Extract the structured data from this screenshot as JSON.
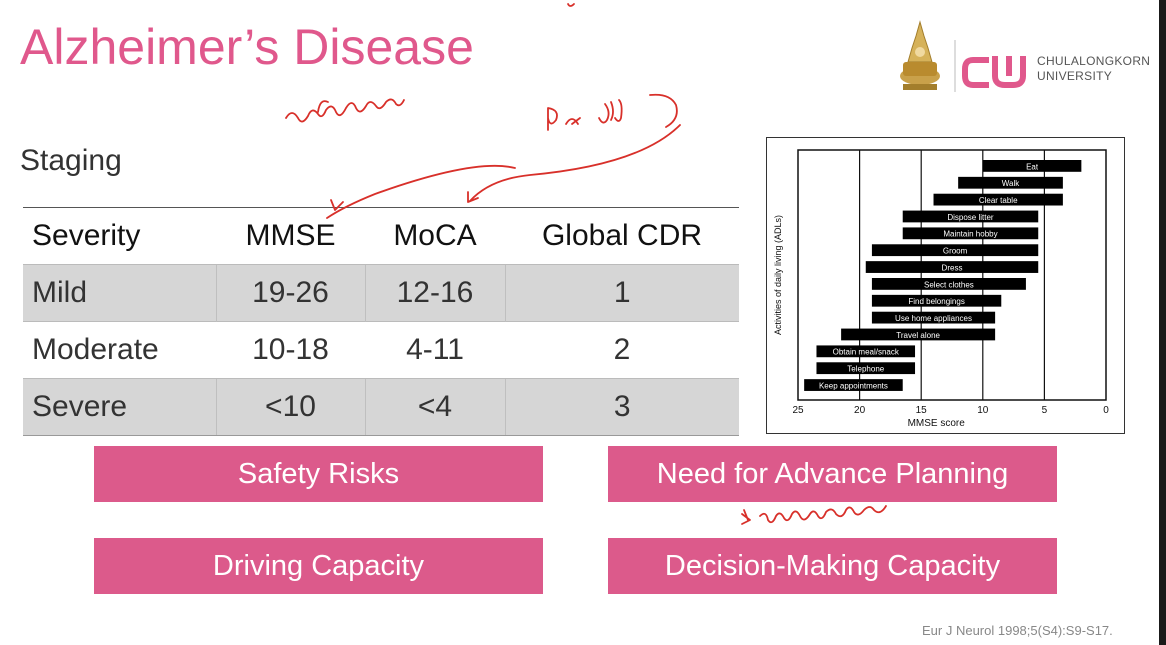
{
  "slide": {
    "title": "Alzheimer’s Disease",
    "subtitle": "Staging",
    "logo": {
      "name": "CHULALONGKORN",
      "sub": "UNIVERSITY"
    }
  },
  "table": {
    "headers": [
      "Severity",
      "MMSE",
      "MoCA",
      "Global CDR"
    ],
    "rows": [
      [
        "Mild",
        "19-26",
        "12-16",
        "1"
      ],
      [
        "Moderate",
        "10-18",
        "4-11",
        "2"
      ],
      [
        "Severe",
        "<10",
        "<4",
        "3"
      ]
    ]
  },
  "chart_data": {
    "type": "bar",
    "orientation": "horizontal-range",
    "xlabel": "MMSE score",
    "ylabel": "Activities of daily living (ADLs)",
    "xlim": [
      25,
      0
    ],
    "xticks": [
      25,
      20,
      15,
      10,
      5,
      0
    ],
    "categories": [
      "Eat",
      "Walk",
      "Clear table",
      "Dispose litter",
      "Maintain hobby",
      "Groom",
      "Dress",
      "Select clothes",
      "Find belongings",
      "Use home appliances",
      "Travel alone",
      "Obtain meal/snack",
      "Telephone",
      "Keep appointments"
    ],
    "ranges": [
      [
        10,
        2
      ],
      [
        12,
        3.5
      ],
      [
        14,
        3.5
      ],
      [
        16.5,
        5.5
      ],
      [
        16.5,
        5.5
      ],
      [
        19,
        5.5
      ],
      [
        19.5,
        5.5
      ],
      [
        19,
        6.5
      ],
      [
        19,
        8.5
      ],
      [
        19,
        9
      ],
      [
        21.5,
        9
      ],
      [
        23.5,
        15.5
      ],
      [
        23.5,
        15.5
      ],
      [
        24.5,
        16.5
      ]
    ],
    "grid": "vertical lines at 20, 15, 10, 5"
  },
  "cards": [
    "Safety Risks",
    "Need for Advance Planning",
    "Driving Capacity",
    "Decision-Making Capacity"
  ],
  "citation": "Eur J Neurol 1998;5(S4):S9-S17."
}
